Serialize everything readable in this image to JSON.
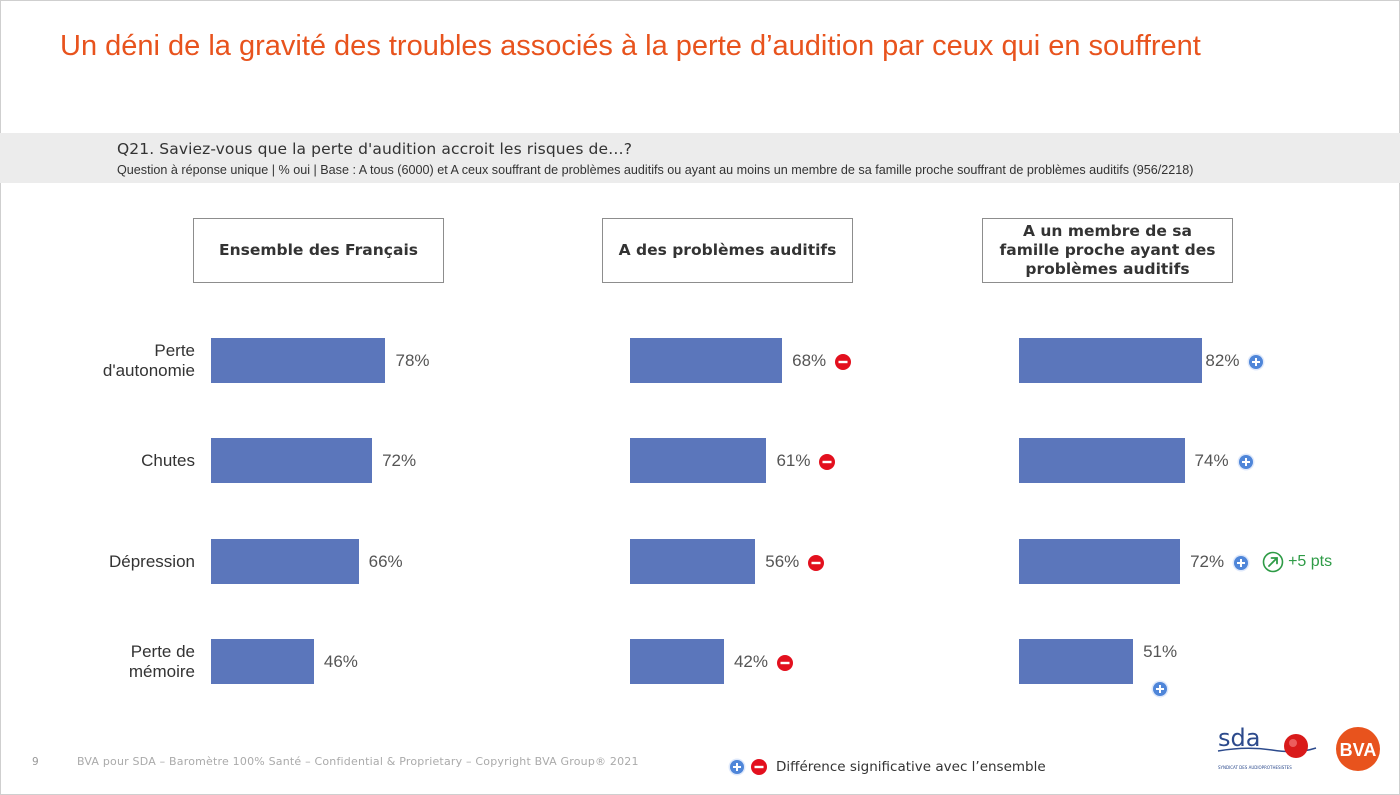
{
  "title": "Un déni de la gravité des troubles associés à la perte d’audition par ceux qui en souffrent",
  "question": {
    "text": "Q21. Saviez-vous que la perte d'audition accroit les risques de…?",
    "subtext": "Question à réponse unique | % oui | Base : A tous (6000) et A ceux souffrant de problèmes auditifs ou ayant au moins un membre de sa famille proche souffrant de problèmes auditifs (956/2218)"
  },
  "colors": {
    "bar": "#5b76bb",
    "title": "#e8531d",
    "sig_plus": "#4f86d9",
    "sig_minus": "#e3101e",
    "trend": "#2e9b46"
  },
  "chart_data": {
    "type": "bar",
    "orientation": "horizontal",
    "unit": "%",
    "categories": [
      "Perte d'autonomie",
      "Chutes",
      "Dépression",
      "Perte de mémoire"
    ],
    "category_labels": [
      [
        "Perte",
        "d'autonomie"
      ],
      [
        "Chutes"
      ],
      [
        "Dépression"
      ],
      [
        "Perte de",
        "mémoire"
      ]
    ],
    "series": [
      {
        "name": "Ensemble des Français",
        "values": [
          78,
          72,
          66,
          46
        ],
        "value_labels": [
          "78%",
          "72%",
          "66%",
          "46%"
        ],
        "significance": [
          null,
          null,
          null,
          null
        ]
      },
      {
        "name": "A des problèmes auditifs",
        "values": [
          68,
          61,
          56,
          42
        ],
        "value_labels": [
          "68%",
          "61%",
          "56%",
          "42%"
        ],
        "significance": [
          "minus",
          "minus",
          "minus",
          "minus"
        ]
      },
      {
        "name": "A un membre de sa famille proche ayant des problèmes auditifs",
        "values": [
          82,
          74,
          72,
          51
        ],
        "value_labels": [
          "82%",
          "74%",
          "72%",
          "51%"
        ],
        "significance": [
          "plus",
          "plus",
          "plus",
          "plus"
        ]
      }
    ],
    "annotations": [
      {
        "series": 2,
        "category": 2,
        "text": "+5 pts",
        "icon": "trend-up-icon"
      }
    ],
    "xlim": [
      0,
      100
    ]
  },
  "panels": [
    {
      "header": "Ensemble des Français"
    },
    {
      "header": "A des problèmes auditifs"
    },
    {
      "header": "A un membre de sa famille proche ayant des problèmes auditifs"
    }
  ],
  "legend": {
    "text": "Différence significative avec l’ensemble",
    "icons": [
      "plus-circle-icon",
      "minus-circle-icon"
    ]
  },
  "footer": {
    "page": "9",
    "text": "BVA pour SDA – Baromètre 100% Santé – Confidential & Proprietary – Copyright BVA Group® 2021"
  },
  "logos": {
    "sda": "sda",
    "sda_sub": "SYNDICAT DES AUDIOPROTHESISTES",
    "bva": "BVA"
  }
}
